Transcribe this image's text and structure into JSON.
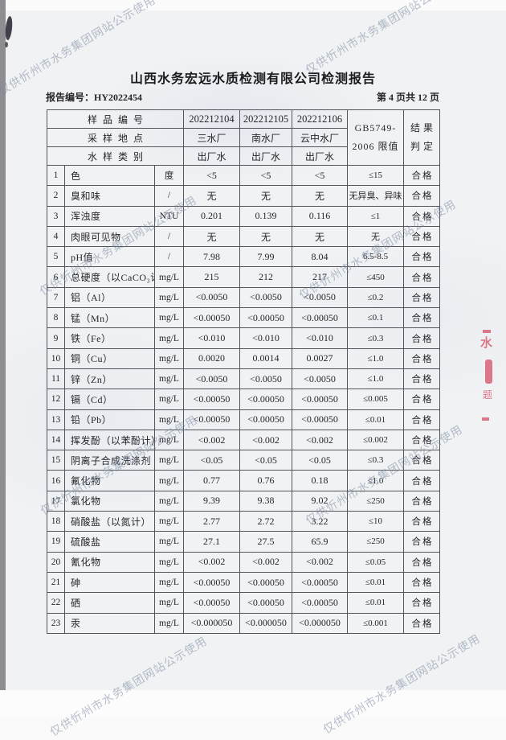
{
  "watermark": {
    "text": "仅供忻州市水务集团网站公示使用"
  },
  "header": {
    "title": "山西水务宏远水质检测有限公司检测报告",
    "report_no_label": "报告编号：",
    "report_no": "HY2022454",
    "page_info": "第 4 页共 12 页"
  },
  "stamp": {
    "color": "#d8596f",
    "fragment1": "水",
    "fragment2": "题"
  },
  "table": {
    "head": {
      "sample_no_label": "样品编号",
      "location_label": "采样地点",
      "type_label": "水样类别",
      "sample_ids": [
        "202212104",
        "202212105",
        "202212106"
      ],
      "locations": [
        "三水厂",
        "南水厂",
        "云中水厂"
      ],
      "types": [
        "出厂水",
        "出厂水",
        "出厂水"
      ],
      "standard_line1": "GB5749-",
      "standard_line2": "2006 限值",
      "result_line1": "结果",
      "result_line2": "判定"
    },
    "rows": [
      {
        "no": "1",
        "name": "色",
        "unit": "度",
        "v1": "<5",
        "v2": "<5",
        "v3": "<5",
        "limit": "≤15",
        "result": "合格"
      },
      {
        "no": "2",
        "name": "臭和味",
        "unit": "/",
        "v1": "无",
        "v2": "无",
        "v3": "无",
        "limit": "无异臭、异味",
        "result": "合格"
      },
      {
        "no": "3",
        "name": "浑浊度",
        "unit": "NTU",
        "v1": "0.201",
        "v2": "0.139",
        "v3": "0.116",
        "limit": "≤1",
        "result": "合格"
      },
      {
        "no": "4",
        "name": "肉眼可见物",
        "unit": "/",
        "v1": "无",
        "v2": "无",
        "v3": "无",
        "limit": "无",
        "result": "合格"
      },
      {
        "no": "5",
        "name": "pH值",
        "unit": "/",
        "v1": "7.98",
        "v2": "7.99",
        "v3": "8.04",
        "limit": "6.5-8.5",
        "result": "合格"
      },
      {
        "no": "6",
        "name": "总硬度（以CaCO₃计）",
        "unit": "mg/L",
        "v1": "215",
        "v2": "212",
        "v3": "217",
        "limit": "≤450",
        "result": "合格"
      },
      {
        "no": "7",
        "name": "铝（Al）",
        "unit": "mg/L",
        "v1": "<0.0050",
        "v2": "<0.0050",
        "v3": "<0.0050",
        "limit": "≤0.2",
        "result": "合格"
      },
      {
        "no": "8",
        "name": "锰（Mn）",
        "unit": "mg/L",
        "v1": "<0.00050",
        "v2": "<0.00050",
        "v3": "<0.00050",
        "limit": "≤0.1",
        "result": "合格"
      },
      {
        "no": "9",
        "name": "铁（Fe）",
        "unit": "mg/L",
        "v1": "<0.010",
        "v2": "<0.010",
        "v3": "<0.010",
        "limit": "≤0.3",
        "result": "合格"
      },
      {
        "no": "10",
        "name": "铜（Cu）",
        "unit": "mg/L",
        "v1": "0.0020",
        "v2": "0.0014",
        "v3": "0.0027",
        "limit": "≤1.0",
        "result": "合格"
      },
      {
        "no": "11",
        "name": "锌（Zn）",
        "unit": "mg/L",
        "v1": "<0.0050",
        "v2": "<0.0050",
        "v3": "<0.0050",
        "limit": "≤1.0",
        "result": "合格"
      },
      {
        "no": "12",
        "name": "镉（Cd）",
        "unit": "mg/L",
        "v1": "<0.00050",
        "v2": "<0.00050",
        "v3": "<0.00050",
        "limit": "≤0.005",
        "result": "合格"
      },
      {
        "no": "13",
        "name": "铅（Pb）",
        "unit": "mg/L",
        "v1": "<0.00050",
        "v2": "<0.00050",
        "v3": "<0.00050",
        "limit": "≤0.01",
        "result": "合格"
      },
      {
        "no": "14",
        "name": "挥发酚（以苯酚计）",
        "unit": "mg/L",
        "v1": "<0.002",
        "v2": "<0.002",
        "v3": "<0.002",
        "limit": "≤0.002",
        "result": "合格"
      },
      {
        "no": "15",
        "name": "阴离子合成洗涤剂",
        "unit": "mg/L",
        "v1": "<0.05",
        "v2": "<0.05",
        "v3": "<0.05",
        "limit": "≤0.3",
        "result": "合格"
      },
      {
        "no": "16",
        "name": "氟化物",
        "unit": "mg/L",
        "v1": "0.77",
        "v2": "0.76",
        "v3": "0.18",
        "limit": "≤1.0",
        "result": "合格"
      },
      {
        "no": "17",
        "name": "氯化物",
        "unit": "mg/L",
        "v1": "9.39",
        "v2": "9.38",
        "v3": "9.02",
        "limit": "≤250",
        "result": "合格"
      },
      {
        "no": "18",
        "name": "硝酸盐（以氮计）",
        "unit": "mg/L",
        "v1": "2.77",
        "v2": "2.72",
        "v3": "3.22",
        "limit": "≤10",
        "result": "合格"
      },
      {
        "no": "19",
        "name": "硫酸盐",
        "unit": "mg/L",
        "v1": "27.1",
        "v2": "27.5",
        "v3": "65.9",
        "limit": "≤250",
        "result": "合格"
      },
      {
        "no": "20",
        "name": "氰化物",
        "unit": "mg/L",
        "v1": "<0.002",
        "v2": "<0.002",
        "v3": "<0.002",
        "limit": "≤0.05",
        "result": "合格"
      },
      {
        "no": "21",
        "name": "砷",
        "unit": "mg/L",
        "v1": "<0.00050",
        "v2": "<0.00050",
        "v3": "<0.00050",
        "limit": "≤0.01",
        "result": "合格"
      },
      {
        "no": "22",
        "name": "硒",
        "unit": "mg/L",
        "v1": "<0.00050",
        "v2": "<0.00050",
        "v3": "<0.00050",
        "limit": "≤0.01",
        "result": "合格"
      },
      {
        "no": "23",
        "name": "汞",
        "unit": "mg/L",
        "v1": "<0.000050",
        "v2": "<0.000050",
        "v3": "<0.000050",
        "limit": "≤0.001",
        "result": "合格"
      }
    ]
  }
}
